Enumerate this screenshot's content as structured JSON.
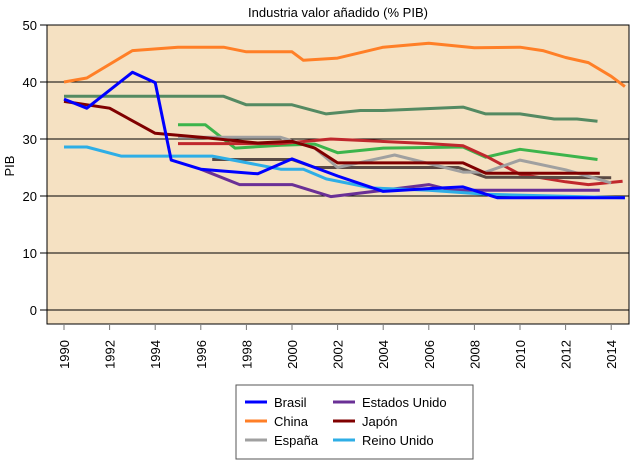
{
  "chart_data": {
    "type": "line",
    "title": "Industria valor añadido (% PIB)",
    "xlabel": "",
    "ylabel": "PIB",
    "ylim": [
      0,
      50
    ],
    "xlim": [
      1989.5,
      2014.8
    ],
    "yticks": [
      "0",
      "10",
      "20",
      "30",
      "40",
      "50"
    ],
    "xticks": [
      "1990",
      "1992",
      "1994",
      "1996",
      "1998",
      "2000",
      "2002",
      "2004",
      "2006",
      "2008",
      "2010",
      "2012",
      "2014"
    ],
    "grid": "horizontal",
    "plot_background": "#f5e1c2",
    "legend_placement": "bottom",
    "series": [
      {
        "name": "Brasil",
        "in_legend": true,
        "color": "#0000ff",
        "points": [
          [
            1990,
            37.0
          ],
          [
            1991,
            35.4
          ],
          [
            1993,
            41.7
          ],
          [
            1994,
            39.9
          ],
          [
            1994.7,
            26.3
          ],
          [
            1996,
            24.7
          ],
          [
            1998.5,
            23.9
          ],
          [
            2000,
            26.5
          ],
          [
            2001,
            25.0
          ],
          [
            2002,
            23.5
          ],
          [
            2004,
            20.8
          ],
          [
            2006,
            21.3
          ],
          [
            2007.5,
            21.6
          ],
          [
            2009,
            19.7
          ],
          [
            2014.6,
            19.7
          ]
        ]
      },
      {
        "name": "China",
        "in_legend": true,
        "color": "#ff7f27",
        "points": [
          [
            1990,
            40.0
          ],
          [
            1991,
            40.7
          ],
          [
            1993,
            45.5
          ],
          [
            1995,
            46.1
          ],
          [
            1997,
            46.1
          ],
          [
            1998,
            45.3
          ],
          [
            2000,
            45.3
          ],
          [
            2000.5,
            43.8
          ],
          [
            2002,
            44.2
          ],
          [
            2004,
            46.1
          ],
          [
            2006,
            46.8
          ],
          [
            2008,
            46.0
          ],
          [
            2010,
            46.1
          ],
          [
            2011,
            45.5
          ],
          [
            2012,
            44.3
          ],
          [
            2013,
            43.4
          ],
          [
            2014,
            41.0
          ],
          [
            2014.6,
            39.2
          ]
        ]
      },
      {
        "name": "España",
        "in_legend": true,
        "color": "#a0a0a0",
        "points": [
          [
            1995,
            30.3
          ],
          [
            1999.5,
            30.3
          ],
          [
            2001,
            28.4
          ],
          [
            2002,
            25.0
          ],
          [
            2004.5,
            27.2
          ],
          [
            2007.5,
            24.2
          ],
          [
            2008.5,
            24.2
          ],
          [
            2010,
            26.3
          ],
          [
            2012,
            24.6
          ],
          [
            2014,
            22.3
          ]
        ]
      },
      {
        "name": "Estados Unido",
        "in_legend": true,
        "color": "#6a3096",
        "points": [
          [
            1996,
            24.7
          ],
          [
            1997.7,
            22.0
          ],
          [
            2000,
            22.0
          ],
          [
            2001.7,
            19.9
          ],
          [
            2004,
            21.0
          ],
          [
            2006,
            22.0
          ],
          [
            2007,
            21.0
          ],
          [
            2013.5,
            21.0
          ]
        ]
      },
      {
        "name": "Japón",
        "in_legend": true,
        "color": "#800000",
        "points": [
          [
            1990,
            36.6
          ],
          [
            1992,
            35.4
          ],
          [
            1994,
            31.0
          ],
          [
            1996,
            30.3
          ],
          [
            1998.5,
            29.3
          ],
          [
            2000,
            29.6
          ],
          [
            2001,
            28.4
          ],
          [
            2002,
            25.8
          ],
          [
            2007.5,
            25.8
          ],
          [
            2008.5,
            24.0
          ],
          [
            2013.5,
            24.0
          ]
        ]
      },
      {
        "name": "Reino Unido",
        "in_legend": true,
        "color": "#2eaee6",
        "points": [
          [
            1990,
            28.6
          ],
          [
            1991,
            28.6
          ],
          [
            1992.5,
            27.0
          ],
          [
            1996.5,
            27.0
          ],
          [
            1999.5,
            24.7
          ],
          [
            2000.5,
            24.7
          ],
          [
            2001.5,
            23.0
          ],
          [
            2003.5,
            21.4
          ],
          [
            2006,
            21.0
          ],
          [
            2008.5,
            20.3
          ],
          [
            2014.6,
            19.7
          ]
        ]
      },
      {
        "name": "",
        "in_legend": false,
        "color": "#548a62",
        "points": [
          [
            1990,
            37.5
          ],
          [
            1997,
            37.5
          ],
          [
            1998,
            36.0
          ],
          [
            2000,
            36.0
          ],
          [
            2001.5,
            34.4
          ],
          [
            2003,
            35.0
          ],
          [
            2004,
            35.0
          ],
          [
            2007.5,
            35.6
          ],
          [
            2008.5,
            34.4
          ],
          [
            2010,
            34.4
          ],
          [
            2011.5,
            33.5
          ],
          [
            2012.5,
            33.5
          ],
          [
            2013.4,
            33.1
          ]
        ]
      },
      {
        "name": "",
        "in_legend": false,
        "color": "#3cb44b",
        "points": [
          [
            1995,
            32.5
          ],
          [
            1996.2,
            32.5
          ],
          [
            1997.5,
            28.4
          ],
          [
            1999.5,
            28.9
          ],
          [
            2001,
            29.1
          ],
          [
            2002,
            27.6
          ],
          [
            2004,
            28.4
          ],
          [
            2007.5,
            28.6
          ],
          [
            2008.5,
            26.8
          ],
          [
            2010,
            28.2
          ],
          [
            2013.4,
            26.4
          ]
        ]
      },
      {
        "name": "",
        "in_legend": false,
        "color": "#c0282d",
        "points": [
          [
            1995,
            29.2
          ],
          [
            1999.5,
            29.2
          ],
          [
            2001.7,
            30.0
          ],
          [
            2006,
            29.2
          ],
          [
            2007.5,
            28.8
          ],
          [
            2008.5,
            27.0
          ],
          [
            2010,
            23.8
          ],
          [
            2012,
            22.5
          ],
          [
            2013,
            22.0
          ],
          [
            2014.5,
            22.6
          ]
        ]
      },
      {
        "name": "",
        "in_legend": false,
        "color": "#5a4a44",
        "points": [
          [
            1996.5,
            26.4
          ],
          [
            2000,
            26.4
          ],
          [
            2001,
            25.0
          ],
          [
            2007.3,
            25.0
          ],
          [
            2008.5,
            23.3
          ],
          [
            2014,
            23.2
          ]
        ]
      }
    ]
  }
}
